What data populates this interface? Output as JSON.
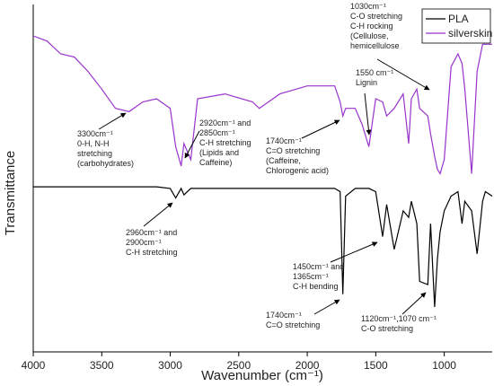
{
  "chart_data": {
    "type": "line",
    "xlabel": "Wavenumber (cm⁻¹)",
    "ylabel": "Transmittance",
    "x": [
      4000,
      3900,
      3800,
      3700,
      3600,
      3500,
      3400,
      3300,
      3200,
      3100,
      3000,
      2960,
      2920,
      2900,
      2850,
      2800,
      2600,
      2400,
      2350,
      2200,
      2000,
      1800,
      1760,
      1740,
      1720,
      1650,
      1600,
      1550,
      1500,
      1450,
      1420,
      1365,
      1300,
      1260,
      1240,
      1200,
      1180,
      1120,
      1100,
      1070,
      1050,
      1030,
      1000,
      950,
      900,
      870,
      850,
      800,
      760,
      720,
      700,
      650
    ],
    "series": [
      {
        "name": "PLA",
        "color": "#000000",
        "values": [
          51.5,
          51.5,
          51.5,
          51.5,
          51.5,
          51.5,
          51.5,
          51.5,
          51.5,
          51.5,
          51,
          48,
          51,
          49,
          51,
          51,
          51,
          51,
          51,
          51,
          51,
          51,
          50,
          18,
          48.6,
          51,
          51,
          51,
          50,
          36,
          46,
          32,
          44,
          42,
          47,
          40,
          22,
          21,
          40,
          14,
          29,
          37.5,
          44,
          48.6,
          50,
          40,
          47,
          44,
          30.6,
          47,
          50,
          48.6
        ]
      },
      {
        "name": "silverskin",
        "color": "#9933cc",
        "values": [
          98.6,
          97,
          93,
          92,
          87.5,
          82,
          76,
          75,
          78,
          79,
          76,
          64,
          58,
          65,
          60,
          79,
          80.5,
          78,
          76,
          80.5,
          83,
          83,
          78,
          73.6,
          76,
          76,
          71,
          64,
          79,
          78,
          73.6,
          76,
          80.5,
          65,
          79,
          82,
          76,
          73.6,
          68,
          61,
          57,
          55.6,
          60,
          89,
          93,
          90,
          82,
          55.6,
          87.5,
          96,
          96,
          96
        ]
      }
    ],
    "xlim": [
      4000,
      650
    ],
    "ylim": [
      0,
      100
    ],
    "xticks": [
      4000,
      3500,
      3000,
      2500,
      2000,
      1500,
      1000
    ],
    "legend": "upper right",
    "annotations": [
      [
        "3300cm⁻¹",
        "0-H, N-H",
        "stretching",
        "(carbohydrates)"
      ],
      [
        "2920cm⁻¹ and",
        "2850cm⁻¹",
        "C-H stretching",
        "(Lipids and",
        "Caffeine)"
      ],
      [
        "1550 cm⁻¹",
        "Lignin"
      ],
      [
        "1740cm⁻¹",
        "C=O stretching",
        "(Caffeine,",
        "Chlorogenic acid)"
      ],
      [
        "1030cm⁻¹",
        "C-O stretching",
        "C-H rocking",
        "(Cellulose,",
        "hemicellulose"
      ],
      [
        "2960cm⁻¹ and",
        "2900cm⁻¹",
        "C-H stretching"
      ],
      [
        "1450cm⁻¹ and",
        "1365cm⁻¹",
        "C-H bending"
      ],
      [
        "1740cm⁻¹",
        "C=O stretching"
      ],
      [
        "1120cm⁻¹,1070 cm⁻¹",
        "C-O stretching"
      ]
    ]
  }
}
